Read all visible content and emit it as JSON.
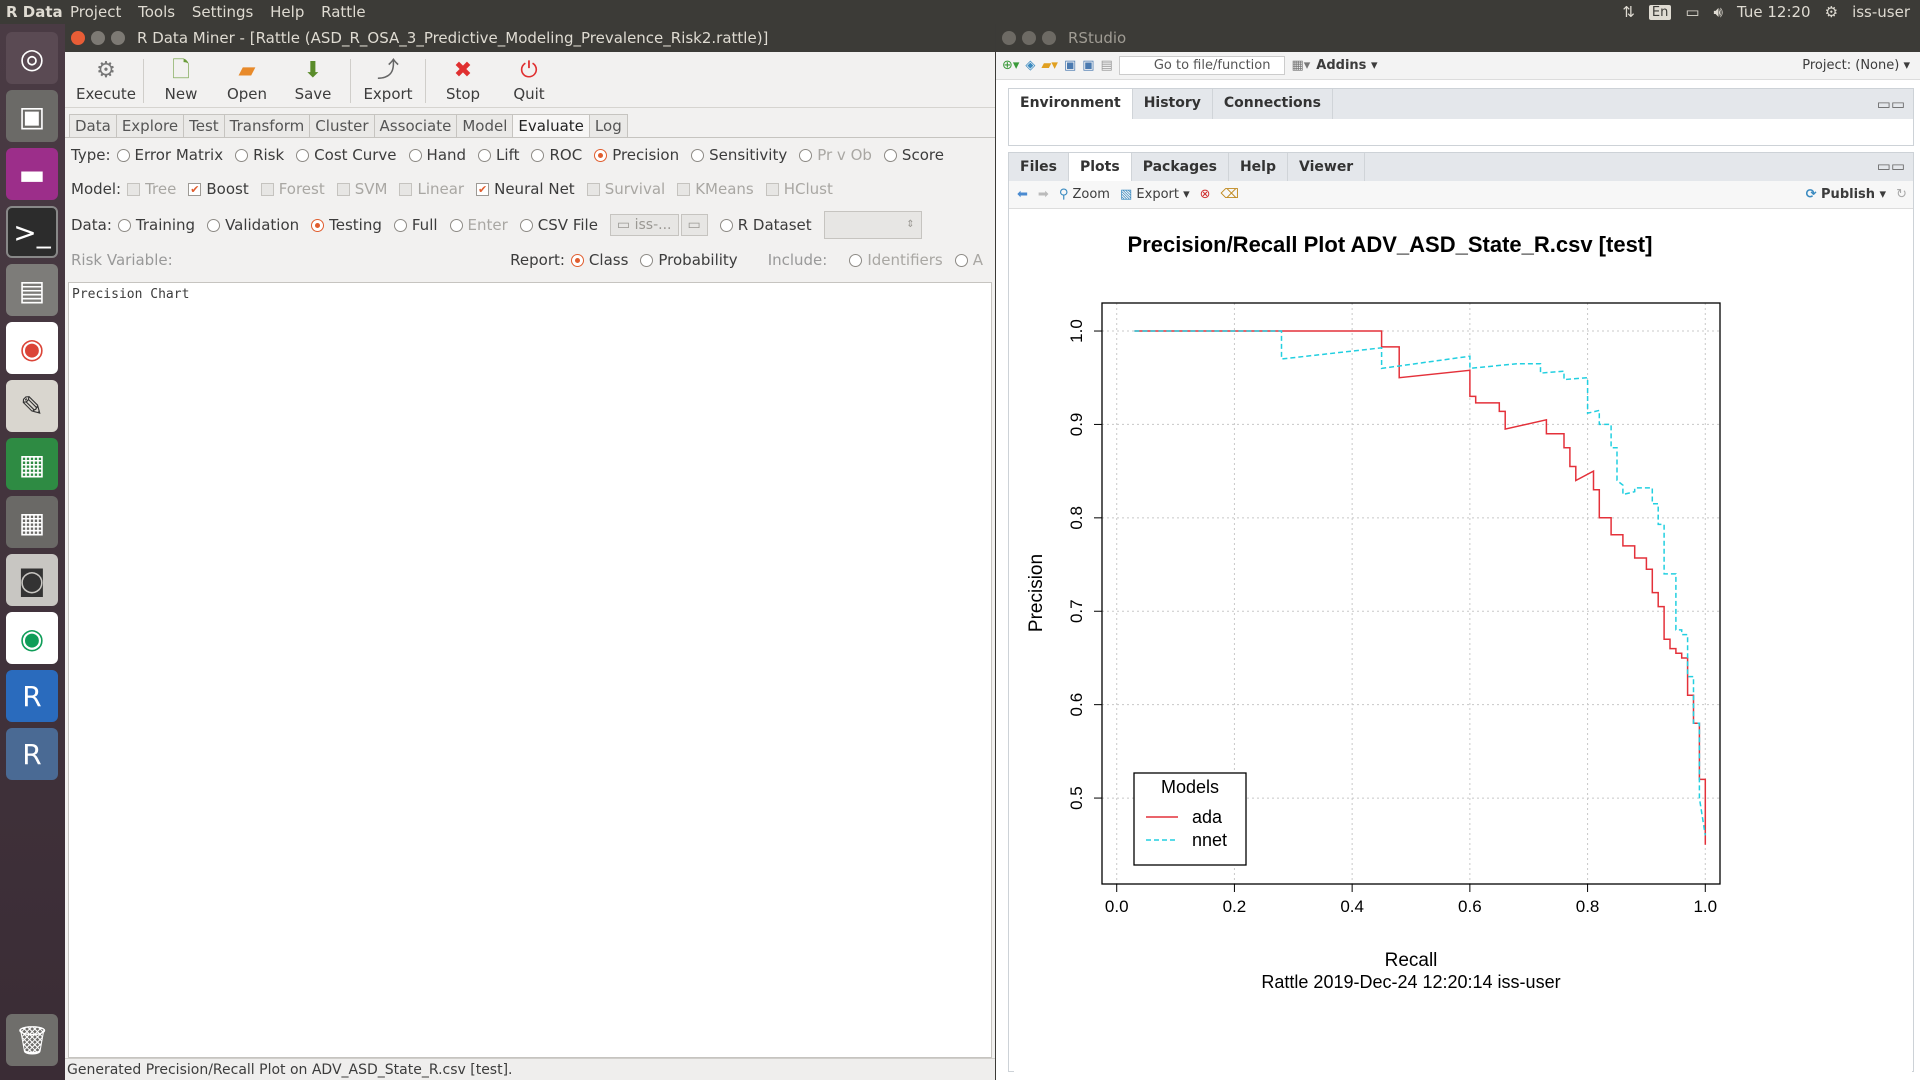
{
  "topbar": {
    "app": "R Data Miner",
    "menu": [
      "Project",
      "Tools",
      "Settings",
      "Help",
      "Rattle"
    ],
    "lang": "En",
    "time": "Tue 12:20",
    "user": "iss-user"
  },
  "rattle": {
    "title": "R Data Miner - [Rattle (ASD_R_OSA_3_Predictive_Modeling_Prevalence_Risk2.rattle)]",
    "toolbar": [
      "Execute",
      "New",
      "Open",
      "Save",
      "Export",
      "Stop",
      "Quit"
    ],
    "tabs": [
      "Data",
      "Explore",
      "Test",
      "Transform",
      "Cluster",
      "Associate",
      "Model",
      "Evaluate",
      "Log"
    ],
    "active_tab": "Evaluate",
    "type_label": "Type:",
    "types": [
      "Error Matrix",
      "Risk",
      "Cost Curve",
      "Hand",
      "Lift",
      "ROC",
      "Precision",
      "Sensitivity",
      "Pr v Ob",
      "Score"
    ],
    "model_label": "Model:",
    "models": [
      "Tree",
      "Boost",
      "Forest",
      "SVM",
      "Linear",
      "Neural Net",
      "Survival",
      "KMeans",
      "HClust"
    ],
    "data_label": "Data:",
    "data_opts": [
      "Training",
      "Validation",
      "Testing",
      "Full",
      "Enter",
      "CSV File"
    ],
    "csv_value": "iss-...",
    "rdataset": "R Dataset",
    "risk_label": "Risk Variable:",
    "report_label": "Report:",
    "report_opts": [
      "Class",
      "Probability"
    ],
    "include_label": "Include:",
    "include_opts": [
      "Identifiers",
      "A"
    ],
    "output": "Precision Chart",
    "status": "Generated Precision/Recall Plot on ADV_ASD_State_R.csv [test]."
  },
  "rstudio": {
    "title": "RStudio",
    "goto": "Go to file/function",
    "addins": "Addins",
    "project": "Project: (None)",
    "top_tabs": [
      "Environment",
      "History",
      "Connections"
    ],
    "bottom_tabs": [
      "Files",
      "Plots",
      "Packages",
      "Help",
      "Viewer"
    ],
    "active_bottom": "Plots",
    "zoom": "Zoom",
    "export": "Export",
    "publish": "Publish"
  },
  "chart_data": {
    "type": "line",
    "title": "Precision/Recall Plot  ADV_ASD_State_R.csv [test]",
    "xlabel": "Recall",
    "ylabel": "Precision",
    "subtitle": "Rattle 2019-Dec-24 12:20:14 iss-user",
    "xlim": [
      0,
      1
    ],
    "ylim": [
      0.45,
      1.02
    ],
    "xticks": [
      "0.0",
      "0.2",
      "0.4",
      "0.6",
      "0.8",
      "1.0"
    ],
    "yticks": [
      "0.5",
      "0.6",
      "0.7",
      "0.8",
      "0.9",
      "1.0"
    ],
    "grid": true,
    "legend_title": "Models",
    "legend_position": "bottom-left",
    "series": [
      {
        "name": "ada",
        "color": "#e4313a",
        "dash": "solid",
        "x": [
          0.03,
          0.45,
          0.45,
          0.48,
          0.48,
          0.6,
          0.6,
          0.61,
          0.61,
          0.65,
          0.65,
          0.66,
          0.66,
          0.73,
          0.73,
          0.76,
          0.76,
          0.77,
          0.77,
          0.78,
          0.78,
          0.81,
          0.81,
          0.82,
          0.82,
          0.84,
          0.84,
          0.86,
          0.86,
          0.88,
          0.88,
          0.9,
          0.9,
          0.91,
          0.91,
          0.92,
          0.92,
          0.93,
          0.93,
          0.94,
          0.94,
          0.95,
          0.95,
          0.96,
          0.96,
          0.97,
          0.97,
          0.98,
          0.98,
          0.99,
          0.99,
          1.0,
          1.0
        ],
        "y": [
          1.0,
          1.0,
          0.983,
          0.983,
          0.95,
          0.958,
          0.93,
          0.93,
          0.923,
          0.923,
          0.914,
          0.914,
          0.895,
          0.905,
          0.89,
          0.89,
          0.875,
          0.875,
          0.855,
          0.855,
          0.84,
          0.85,
          0.83,
          0.83,
          0.8,
          0.8,
          0.782,
          0.782,
          0.77,
          0.77,
          0.757,
          0.757,
          0.745,
          0.745,
          0.72,
          0.72,
          0.705,
          0.705,
          0.67,
          0.67,
          0.66,
          0.66,
          0.655,
          0.655,
          0.65,
          0.65,
          0.61,
          0.61,
          0.58,
          0.58,
          0.52,
          0.52,
          0.45
        ]
      },
      {
        "name": "nnet",
        "color": "#22cfe0",
        "dash": "dashed",
        "x": [
          0.03,
          0.28,
          0.28,
          0.45,
          0.45,
          0.6,
          0.6,
          0.68,
          0.68,
          0.72,
          0.72,
          0.76,
          0.76,
          0.8,
          0.8,
          0.82,
          0.82,
          0.84,
          0.84,
          0.85,
          0.85,
          0.86,
          0.86,
          0.88,
          0.88,
          0.91,
          0.91,
          0.92,
          0.92,
          0.93,
          0.93,
          0.94,
          0.94,
          0.95,
          0.95,
          0.96,
          0.96,
          0.97,
          0.97,
          0.98,
          0.98,
          0.99,
          0.99,
          1.0
        ],
        "y": [
          1.0,
          1.0,
          0.97,
          0.982,
          0.96,
          0.973,
          0.96,
          0.965,
          0.965,
          0.965,
          0.955,
          0.957,
          0.948,
          0.95,
          0.912,
          0.915,
          0.9,
          0.9,
          0.875,
          0.875,
          0.84,
          0.835,
          0.825,
          0.828,
          0.832,
          0.832,
          0.815,
          0.815,
          0.793,
          0.793,
          0.74,
          0.74,
          0.74,
          0.74,
          0.68,
          0.68,
          0.675,
          0.675,
          0.63,
          0.63,
          0.58,
          0.58,
          0.5,
          0.46
        ]
      }
    ]
  }
}
